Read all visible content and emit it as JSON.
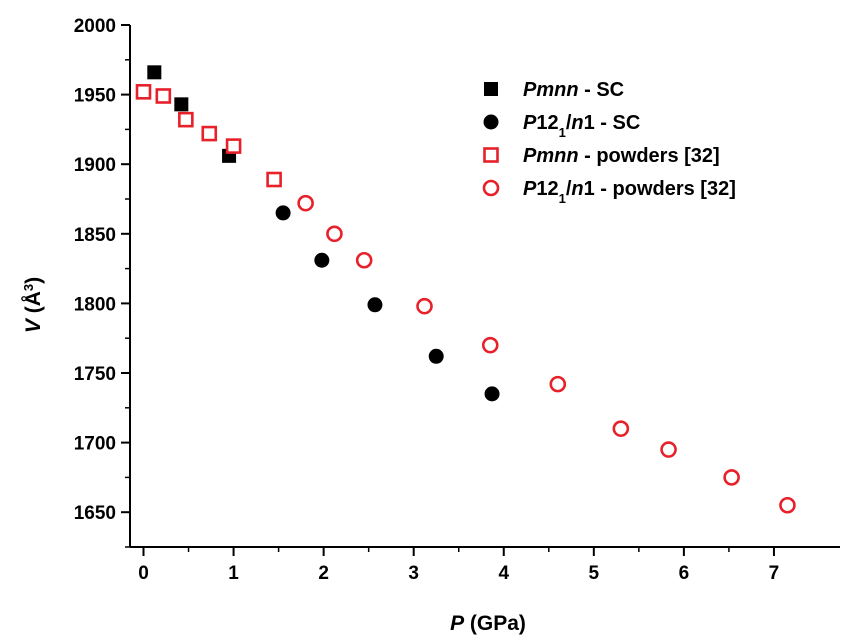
{
  "chart_data": {
    "type": "scatter",
    "xlabel": {
      "var": "P",
      "unit": " (GPa)"
    },
    "ylabel": {
      "var": "V",
      "unit": " (Å",
      "sup": "3",
      "close": ")"
    },
    "xlim": [
      -0.15,
      7.8
    ],
    "ylim": [
      1625,
      2000
    ],
    "xticks": [
      0,
      1,
      2,
      3,
      4,
      5,
      6,
      7
    ],
    "yticks": [
      1650,
      1700,
      1750,
      1800,
      1850,
      1900,
      1950,
      2000
    ],
    "legend_position": "top-right",
    "series": [
      {
        "name": "Pmnn - SC",
        "name_parts": [
          {
            "t": "Pmnn",
            "it": true
          },
          {
            "t": " - SC"
          }
        ],
        "marker": "square",
        "filled": true,
        "color": "#000000",
        "points": [
          [
            0.12,
            1966
          ],
          [
            0.42,
            1943
          ],
          [
            0.95,
            1906
          ]
        ]
      },
      {
        "name": "P12₁/n1 - SC",
        "name_parts": [
          {
            "t": "P",
            "it": true
          },
          {
            "t": "12"
          },
          {
            "t": "1",
            "sub": true
          },
          {
            "t": "/"
          },
          {
            "t": "n",
            "it": true
          },
          {
            "t": "1 - SC"
          }
        ],
        "marker": "circle",
        "filled": true,
        "color": "#000000",
        "points": [
          [
            1.55,
            1865
          ],
          [
            1.98,
            1831
          ],
          [
            2.57,
            1799
          ],
          [
            3.25,
            1762
          ],
          [
            3.87,
            1735
          ]
        ]
      },
      {
        "name": "Pmnn - powders [32]",
        "name_parts": [
          {
            "t": "Pmnn",
            "it": true
          },
          {
            "t": " - powders [32]"
          }
        ],
        "marker": "square",
        "filled": false,
        "color": "#e8202a",
        "points": [
          [
            0.0,
            1952
          ],
          [
            0.22,
            1949
          ],
          [
            0.47,
            1932
          ],
          [
            0.73,
            1922
          ],
          [
            1.0,
            1913
          ],
          [
            1.45,
            1889
          ]
        ]
      },
      {
        "name": "P12₁/n1 - powders [32]",
        "name_parts": [
          {
            "t": "P",
            "it": true
          },
          {
            "t": "12"
          },
          {
            "t": "1",
            "sub": true
          },
          {
            "t": "/"
          },
          {
            "t": "n",
            "it": true
          },
          {
            "t": "1 - powders [32]"
          }
        ],
        "marker": "circle",
        "filled": false,
        "color": "#e8202a",
        "points": [
          [
            1.8,
            1872
          ],
          [
            2.12,
            1850
          ],
          [
            2.45,
            1831
          ],
          [
            3.12,
            1798
          ],
          [
            3.85,
            1770
          ],
          [
            4.6,
            1742
          ],
          [
            5.3,
            1710
          ],
          [
            5.83,
            1695
          ],
          [
            6.53,
            1675
          ],
          [
            7.15,
            1655
          ]
        ]
      }
    ]
  }
}
